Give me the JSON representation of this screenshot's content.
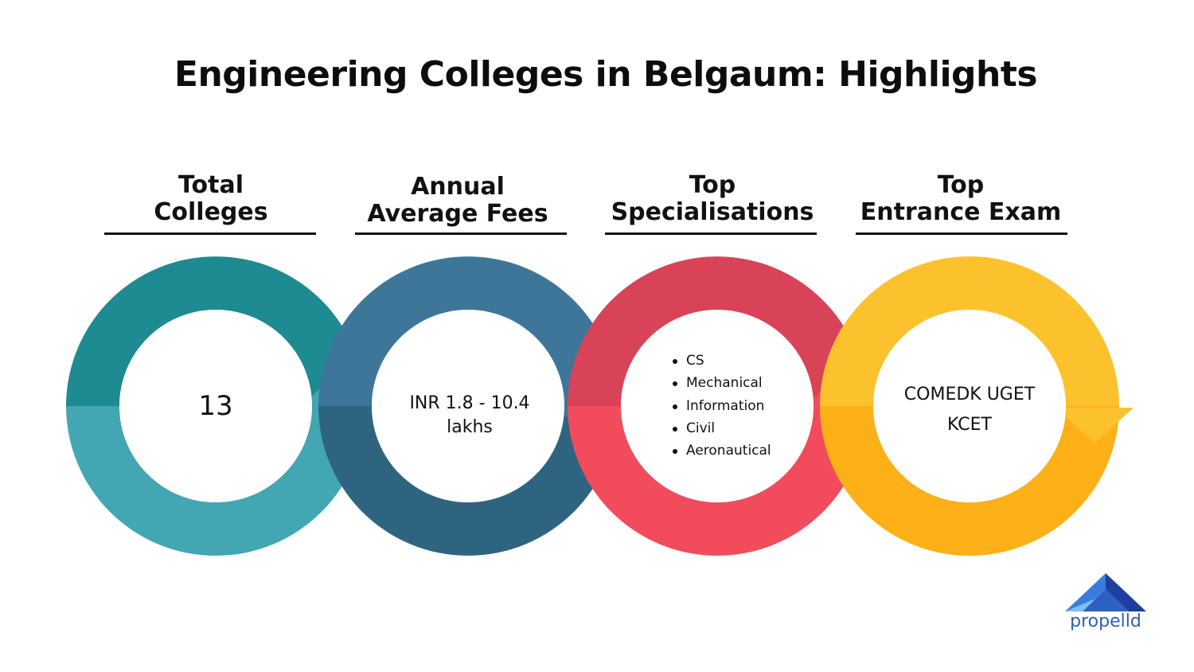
{
  "title": "Engineering Colleges in Belgaum: Highlights",
  "stages": [
    {
      "heading_line1": "Total",
      "heading_line2": "Colleges",
      "value": "13",
      "color_top": "#1e8a91",
      "color_bottom": "#42a6b3"
    },
    {
      "heading_line1": "Annual",
      "heading_line2": "Average Fees",
      "value_line1": "INR 1.8 - 10.4",
      "value_line2": "lakhs",
      "color_top": "#3e7699",
      "color_bottom": "#2e6480"
    },
    {
      "heading_line1": "Top",
      "heading_line2": "Specialisations",
      "items": [
        "CS",
        "Mechanical",
        "Information",
        "Civil",
        "Aeronautical"
      ],
      "color_top": "#d94357",
      "color_bottom": "#f14b5c"
    },
    {
      "heading_line1": "Top",
      "heading_line2": "Entrance Exam",
      "value_line1": "COMEDK UGET",
      "value_line2": "KCET",
      "color_top": "#fcc22d",
      "color_bottom": "#fdb017"
    }
  ],
  "brand": {
    "name": "propelld",
    "logo_icon": "mountain-logo-icon",
    "color": "#2f5fb3"
  }
}
